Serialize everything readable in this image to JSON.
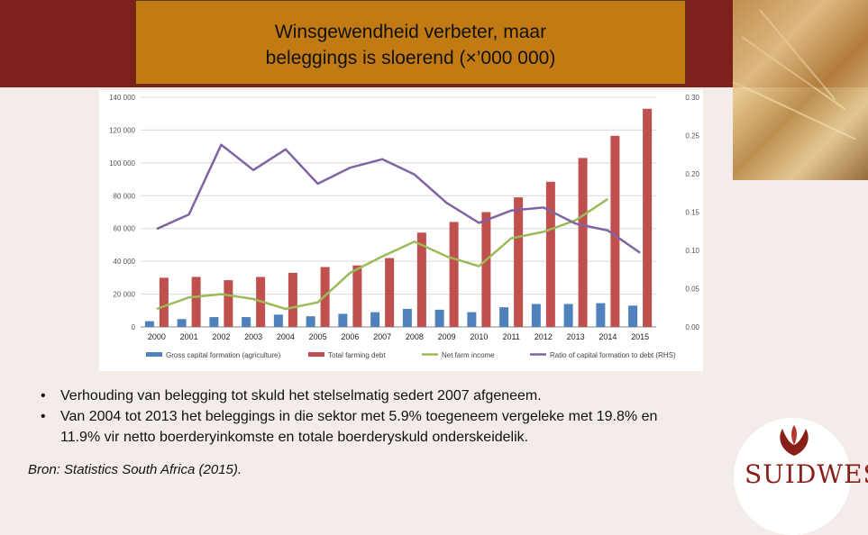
{
  "slide": {
    "title_line1": "Winsgewendheid verbeter, maar",
    "title_line2": "beleggings is sloerend (×’000 000)",
    "bullets": [
      "Verhouding van belegging tot skuld het stelselmatig sedert 2007 afgeneem.",
      "Van 2004 tot 2013 het beleggings in die sektor met 5.9% toegeneem vergeleke met 19.8% en",
      "11.9% vir netto boerderyinkomste en totale boerderyskuld onderskeidelik."
    ],
    "bullet_marker": "•",
    "source": "Bron: Statistics South Africa (2015).",
    "logo_text": "SUIDWES",
    "colors": {
      "band": "#7d1f1b",
      "title_box": "#c27b12",
      "logo": "#8a1f1a"
    }
  },
  "chart_data": {
    "type": "bar",
    "categories": [
      "2000",
      "2001",
      "2002",
      "2003",
      "2004",
      "2005",
      "2006",
      "2007",
      "2008",
      "2009",
      "2010",
      "2011",
      "2012",
      "2013",
      "2014",
      "2015"
    ],
    "left_ticks": [
      "0",
      "20 000",
      "40 000",
      "60 000",
      "80 000",
      "100 000",
      "120 000",
      "140 000"
    ],
    "right_ticks": [
      "0.00",
      "0.05",
      "0.10",
      "0.15",
      "0.20",
      "0.25",
      "0.30"
    ],
    "ylim_left": [
      0,
      140000
    ],
    "ylim_right": [
      0,
      0.3
    ],
    "series": [
      {
        "name": "Gross capital formation (agriculture)",
        "kind": "bar",
        "axis": "left",
        "color": "#4f81bd",
        "values": [
          3500,
          4800,
          6000,
          6000,
          7500,
          6500,
          8000,
          9000,
          11000,
          10500,
          9000,
          12000,
          14000,
          14000,
          14500,
          13000
        ]
      },
      {
        "name": "Total farming debt",
        "kind": "bar",
        "axis": "left",
        "color": "#c0504d",
        "values": [
          30000,
          30500,
          28500,
          30500,
          33000,
          36500,
          37500,
          42000,
          57500,
          64000,
          70000,
          79000,
          88500,
          103000,
          116500,
          133000
        ]
      },
      {
        "name": "Net farm income",
        "kind": "line",
        "axis": "left",
        "color": "#9bbb59",
        "values": [
          11000,
          18000,
          20000,
          17000,
          11000,
          15000,
          33000,
          43000,
          52000,
          43000,
          37000,
          54000,
          58000,
          65000,
          78000,
          null
        ]
      },
      {
        "name": "Ratio of capital formation to debt (RHS)",
        "kind": "line",
        "axis": "right",
        "color": "#8064a2",
        "values": [
          0.128,
          0.147,
          0.238,
          0.205,
          0.232,
          0.187,
          0.208,
          0.219,
          0.199,
          0.162,
          0.136,
          0.152,
          0.156,
          0.135,
          0.126,
          0.097
        ]
      }
    ]
  }
}
